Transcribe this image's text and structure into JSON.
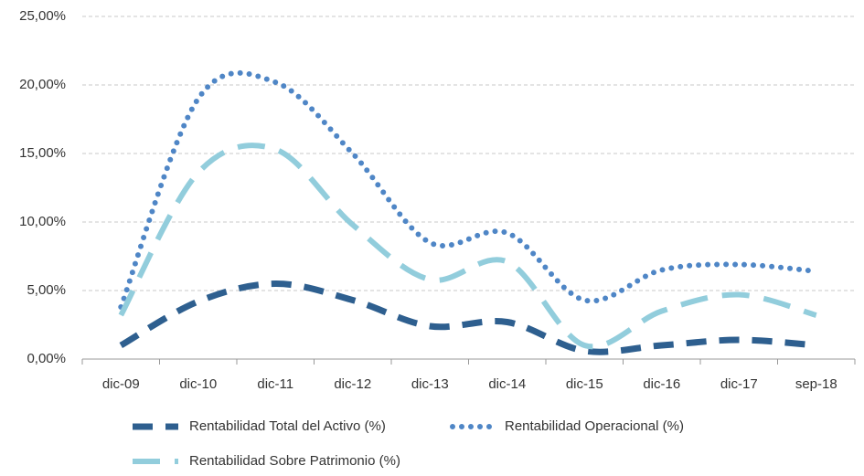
{
  "chart_data": {
    "type": "line",
    "categories": [
      "dic-09",
      "dic-10",
      "dic-11",
      "dic-12",
      "dic-13",
      "dic-14",
      "dic-15",
      "dic-16",
      "dic-17",
      "sep-18"
    ],
    "series": [
      {
        "name": "Rentabilidad Total del Activo (%)",
        "color": "#2e5f8f",
        "values": [
          1.0,
          4.2,
          5.5,
          4.3,
          2.4,
          2.7,
          0.6,
          1.0,
          1.4,
          1.0
        ]
      },
      {
        "name": "Rentabilidad Operacional (%)",
        "color": "#4f86c6",
        "values": [
          3.8,
          19.0,
          20.2,
          15.0,
          8.5,
          9.2,
          4.3,
          6.5,
          6.9,
          6.4
        ]
      },
      {
        "name": "Rentabilidad Sobre Patrimonio (%)",
        "color": "#92cddc",
        "values": [
          3.2,
          13.6,
          15.3,
          9.8,
          5.8,
          7.1,
          1.0,
          3.5,
          4.7,
          3.2
        ]
      }
    ],
    "ylim": [
      0,
      25
    ],
    "yticks": [
      {
        "value": 0,
        "label": "0,00%"
      },
      {
        "value": 5,
        "label": "5,00%"
      },
      {
        "value": 10,
        "label": "10,00%"
      },
      {
        "value": 15,
        "label": "15,00%"
      },
      {
        "value": 20,
        "label": "20,00%"
      },
      {
        "value": 25,
        "label": "25,00%"
      }
    ],
    "grid": true
  }
}
